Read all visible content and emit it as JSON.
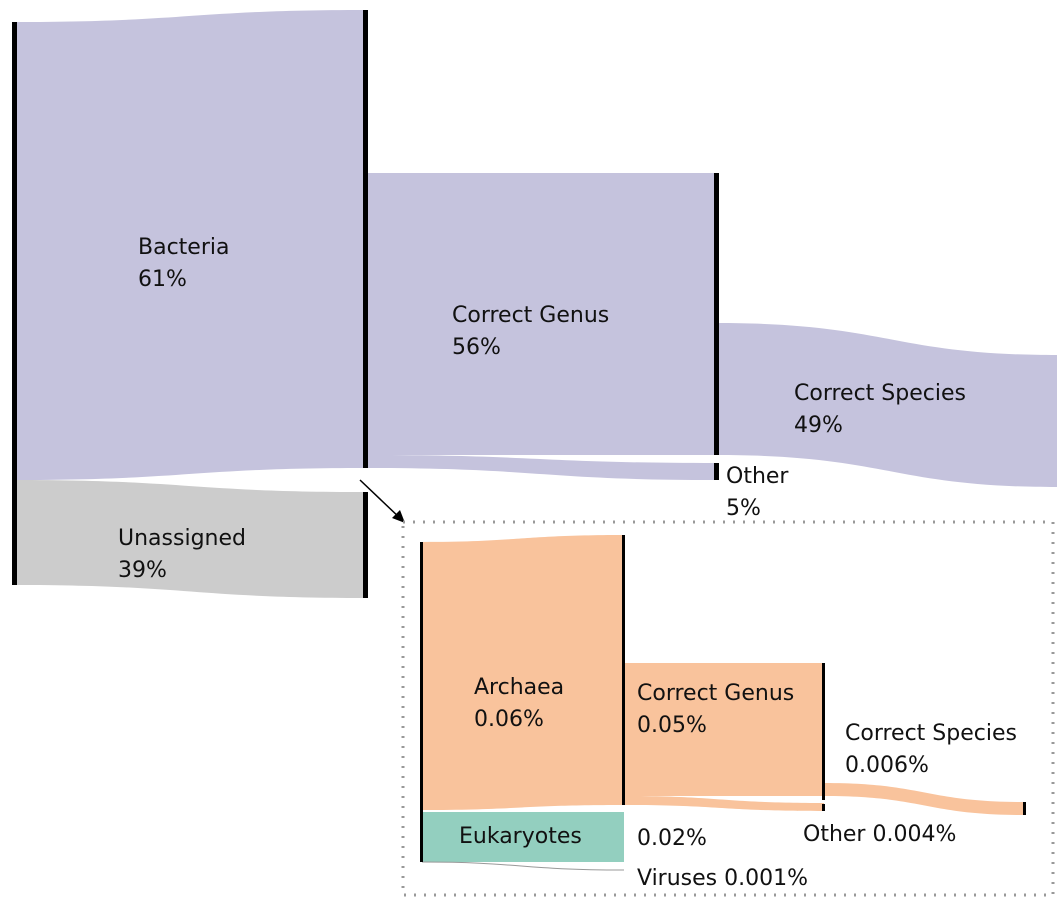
{
  "main": {
    "bacteria": {
      "label": "Bacteria",
      "share": "61%"
    },
    "unassigned": {
      "label": "Unassigned",
      "share": "39%"
    },
    "correct_genus": {
      "label": "Correct Genus",
      "share": "56%"
    },
    "other": {
      "label": "Other",
      "share": "5%"
    },
    "correct_species": {
      "label": "Correct Species",
      "share": "49%"
    }
  },
  "inset": {
    "archaea": {
      "label": "Archaea",
      "share": "0.06%"
    },
    "eukaryotes": {
      "label": "Eukaryotes",
      "share": "0.02%"
    },
    "viruses": "Viruses 0.001%",
    "correct_genus": {
      "label": "Correct Genus",
      "share": "0.05%"
    },
    "correct_species": {
      "label": "Correct Species",
      "share": "0.006%"
    },
    "other": "Other 0.004%"
  }
}
